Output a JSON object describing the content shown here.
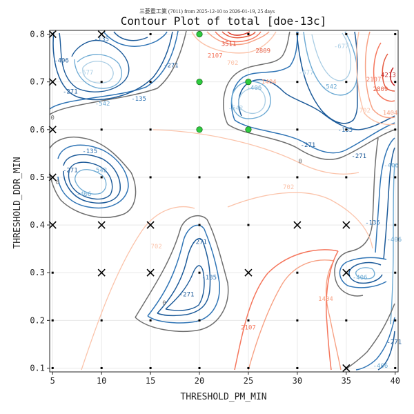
{
  "chart_data": {
    "type": "contour",
    "subtitle": "三菱重工業 (7011) from 2025-12-10 to 2026-01-19, 25 days",
    "title": "Contour Plot of total [doe-13c]",
    "xlabel": "THRESHOLD_PM_MIN",
    "ylabel": "THRESHOLD_DDR_MIN",
    "xlim": [
      4.7,
      40.3
    ],
    "ylim": [
      0.092,
      0.808
    ],
    "xticks": [
      5,
      10,
      15,
      20,
      25,
      30,
      35,
      40
    ],
    "xtick_labels": [
      "5",
      "10",
      "15",
      "20",
      "25",
      "30",
      "35",
      "40"
    ],
    "yticks": [
      0.1,
      0.2,
      0.3,
      0.4,
      0.5,
      0.6,
      0.7,
      0.8
    ],
    "ytick_labels": [
      "0.1",
      "0.2",
      "0.3",
      "0.4",
      "0.5",
      "0.6",
      "0.7",
      "0.8"
    ],
    "grid": true,
    "contour_levels": [
      -677,
      -542,
      -406,
      -271,
      -135,
      0,
      702,
      1404,
      2107,
      2809,
      3511,
      4213
    ],
    "contour_labels": [
      {
        "text": "-135",
        "x": 10.0,
        "y": 0.79,
        "color": "#2f74b5"
      },
      {
        "text": "-406",
        "x": 5.9,
        "y": 0.745,
        "color": "#1c5a99"
      },
      {
        "text": "-677",
        "x": 8.4,
        "y": 0.72,
        "color": "#a9cde4"
      },
      {
        "text": "-271",
        "x": 6.8,
        "y": 0.68,
        "color": "#1c5a99"
      },
      {
        "text": "-542",
        "x": 10.1,
        "y": 0.655,
        "color": "#6ba9d3"
      },
      {
        "text": "-135",
        "x": 13.8,
        "y": 0.665,
        "color": "#2f74b5"
      },
      {
        "text": "-271",
        "x": 17.1,
        "y": 0.735,
        "color": "#1c5a99"
      },
      {
        "text": "0",
        "x": 5.0,
        "y": 0.625,
        "color": "#6e6e6e"
      },
      {
        "text": "-135",
        "x": 8.8,
        "y": 0.555,
        "color": "#2f74b5"
      },
      {
        "text": "-271",
        "x": 6.8,
        "y": 0.515,
        "color": "#1c5a99"
      },
      {
        "text": "-542",
        "x": 9.8,
        "y": 0.515,
        "color": "#6ba9d3"
      },
      {
        "text": "-406",
        "x": 8.2,
        "y": 0.465,
        "color": "#6ba9d3"
      },
      {
        "text": "0",
        "x": 5.5,
        "y": 0.49,
        "color": "#6e6e6e"
      },
      {
        "text": "3511",
        "x": 23.0,
        "y": 0.78,
        "color": "#e03b2b"
      },
      {
        "text": "2107",
        "x": 21.6,
        "y": 0.755,
        "color": "#f5765c"
      },
      {
        "text": "2809",
        "x": 26.5,
        "y": 0.765,
        "color": "#e55a3f"
      },
      {
        "text": "1404",
        "x": 27.1,
        "y": 0.7,
        "color": "#f7a184"
      },
      {
        "text": "702",
        "x": 23.4,
        "y": 0.74,
        "color": "#fbc3aa"
      },
      {
        "text": "-406",
        "x": 25.6,
        "y": 0.688,
        "color": "#6ba9d3"
      },
      {
        "text": "-542",
        "x": 23.7,
        "y": 0.645,
        "color": "#a9cde4"
      },
      {
        "text": "-677",
        "x": 30.9,
        "y": 0.72,
        "color": "#a9cde4"
      },
      {
        "text": "-542",
        "x": 33.3,
        "y": 0.69,
        "color": "#6ba9d3"
      },
      {
        "text": "-677",
        "x": 34.5,
        "y": 0.775,
        "color": "#a9cde4"
      },
      {
        "text": "-135",
        "x": 34.9,
        "y": 0.6,
        "color": "#2f74b5"
      },
      {
        "text": "-271",
        "x": 31.1,
        "y": 0.568,
        "color": "#1c5a99"
      },
      {
        "text": "-271",
        "x": 36.3,
        "y": 0.545,
        "color": "#1c5a99"
      },
      {
        "text": "0",
        "x": 30.3,
        "y": 0.534,
        "color": "#6e6e6e"
      },
      {
        "text": "-406",
        "x": 39.6,
        "y": 0.525,
        "color": "#6ba9d3"
      },
      {
        "text": "702",
        "x": 36.9,
        "y": 0.64,
        "color": "#fbc3aa"
      },
      {
        "text": "1404",
        "x": 39.5,
        "y": 0.635,
        "color": "#f7a184"
      },
      {
        "text": "2107",
        "x": 37.8,
        "y": 0.705,
        "color": "#f5765c"
      },
      {
        "text": "2809",
        "x": 38.5,
        "y": 0.685,
        "color": "#e55a3f"
      },
      {
        "text": "4213",
        "x": 39.3,
        "y": 0.715,
        "color": "#c41f1f"
      },
      {
        "text": "702",
        "x": 29.1,
        "y": 0.48,
        "color": "#fbc3aa"
      },
      {
        "text": "-135",
        "x": 37.7,
        "y": 0.405,
        "color": "#2f74b5"
      },
      {
        "text": "-406",
        "x": 39.9,
        "y": 0.37,
        "color": "#6ba9d3"
      },
      {
        "text": "-406",
        "x": 36.4,
        "y": 0.29,
        "color": "#6ba9d3"
      },
      {
        "text": "1404",
        "x": 32.9,
        "y": 0.245,
        "color": "#f7a184"
      },
      {
        "text": "-271",
        "x": 39.9,
        "y": 0.155,
        "color": "#1c5a99"
      },
      {
        "text": "-406",
        "x": 38.5,
        "y": 0.105,
        "color": "#6ba9d3"
      },
      {
        "text": "702",
        "x": 15.6,
        "y": 0.355,
        "color": "#fbc3aa"
      },
      {
        "text": "-271",
        "x": 20.0,
        "y": 0.365,
        "color": "#1c5a99"
      },
      {
        "text": "-135",
        "x": 21.0,
        "y": 0.29,
        "color": "#2f74b5"
      },
      {
        "text": "-271",
        "x": 18.7,
        "y": 0.255,
        "color": "#1c5a99"
      },
      {
        "text": "0",
        "x": 16.4,
        "y": 0.237,
        "color": "#6e6e6e"
      },
      {
        "text": "2107",
        "x": 25.0,
        "y": 0.185,
        "color": "#f5765c"
      }
    ],
    "points": [
      {
        "x": 5,
        "y": 0.8,
        "marker": "x"
      },
      {
        "x": 10,
        "y": 0.8,
        "marker": "x"
      },
      {
        "x": 15,
        "y": 0.8,
        "marker": "dot"
      },
      {
        "x": 20,
        "y": 0.8,
        "marker": "circle"
      },
      {
        "x": 25,
        "y": 0.8,
        "marker": "dot"
      },
      {
        "x": 30,
        "y": 0.8,
        "marker": "dot"
      },
      {
        "x": 35,
        "y": 0.8,
        "marker": "dot"
      },
      {
        "x": 40,
        "y": 0.8,
        "marker": "dot"
      },
      {
        "x": 5,
        "y": 0.7,
        "marker": "x"
      },
      {
        "x": 10,
        "y": 0.7,
        "marker": "dot"
      },
      {
        "x": 15,
        "y": 0.7,
        "marker": "dot"
      },
      {
        "x": 20,
        "y": 0.7,
        "marker": "circle"
      },
      {
        "x": 25,
        "y": 0.7,
        "marker": "circle"
      },
      {
        "x": 30,
        "y": 0.7,
        "marker": "dot"
      },
      {
        "x": 35,
        "y": 0.7,
        "marker": "dot"
      },
      {
        "x": 40,
        "y": 0.7,
        "marker": "dot"
      },
      {
        "x": 5,
        "y": 0.6,
        "marker": "x"
      },
      {
        "x": 10,
        "y": 0.6,
        "marker": "dot"
      },
      {
        "x": 15,
        "y": 0.6,
        "marker": "dot"
      },
      {
        "x": 20,
        "y": 0.6,
        "marker": "circle"
      },
      {
        "x": 25,
        "y": 0.6,
        "marker": "circle"
      },
      {
        "x": 30,
        "y": 0.6,
        "marker": "dot"
      },
      {
        "x": 35,
        "y": 0.6,
        "marker": "dot"
      },
      {
        "x": 40,
        "y": 0.6,
        "marker": "dot"
      },
      {
        "x": 5,
        "y": 0.5,
        "marker": "x"
      },
      {
        "x": 10,
        "y": 0.5,
        "marker": "dot"
      },
      {
        "x": 15,
        "y": 0.5,
        "marker": "dot"
      },
      {
        "x": 20,
        "y": 0.5,
        "marker": "dot"
      },
      {
        "x": 25,
        "y": 0.5,
        "marker": "dot"
      },
      {
        "x": 30,
        "y": 0.5,
        "marker": "dot"
      },
      {
        "x": 35,
        "y": 0.5,
        "marker": "dot"
      },
      {
        "x": 40,
        "y": 0.5,
        "marker": "dot"
      },
      {
        "x": 5,
        "y": 0.4,
        "marker": "x"
      },
      {
        "x": 10,
        "y": 0.4,
        "marker": "x"
      },
      {
        "x": 15,
        "y": 0.4,
        "marker": "x"
      },
      {
        "x": 20,
        "y": 0.4,
        "marker": "dot"
      },
      {
        "x": 25,
        "y": 0.4,
        "marker": "dot"
      },
      {
        "x": 30,
        "y": 0.4,
        "marker": "x"
      },
      {
        "x": 35,
        "y": 0.4,
        "marker": "x"
      },
      {
        "x": 40,
        "y": 0.4,
        "marker": "dot"
      },
      {
        "x": 5,
        "y": 0.3,
        "marker": "dot"
      },
      {
        "x": 10,
        "y": 0.3,
        "marker": "x"
      },
      {
        "x": 15,
        "y": 0.3,
        "marker": "x"
      },
      {
        "x": 20,
        "y": 0.3,
        "marker": "dot"
      },
      {
        "x": 25,
        "y": 0.3,
        "marker": "x"
      },
      {
        "x": 30,
        "y": 0.3,
        "marker": "dot"
      },
      {
        "x": 35,
        "y": 0.3,
        "marker": "x"
      },
      {
        "x": 40,
        "y": 0.3,
        "marker": "dot"
      },
      {
        "x": 5,
        "y": 0.2,
        "marker": "dot"
      },
      {
        "x": 10,
        "y": 0.2,
        "marker": "dot"
      },
      {
        "x": 15,
        "y": 0.2,
        "marker": "dot"
      },
      {
        "x": 20,
        "y": 0.2,
        "marker": "dot"
      },
      {
        "x": 25,
        "y": 0.2,
        "marker": "dot"
      },
      {
        "x": 30,
        "y": 0.2,
        "marker": "dot"
      },
      {
        "x": 35,
        "y": 0.2,
        "marker": "dot"
      },
      {
        "x": 40,
        "y": 0.2,
        "marker": "dot"
      },
      {
        "x": 5,
        "y": 0.1,
        "marker": "dot"
      },
      {
        "x": 10,
        "y": 0.1,
        "marker": "dot"
      },
      {
        "x": 15,
        "y": 0.1,
        "marker": "dot"
      },
      {
        "x": 20,
        "y": 0.1,
        "marker": "dot"
      },
      {
        "x": 25,
        "y": 0.1,
        "marker": "dot"
      },
      {
        "x": 30,
        "y": 0.1,
        "marker": "dot"
      },
      {
        "x": 35,
        "y": 0.1,
        "marker": "x"
      },
      {
        "x": 40,
        "y": 0.1,
        "marker": "dot"
      }
    ],
    "colors": {
      "neg_dark": "#1c5a99",
      "neg_mid": "#2f74b5",
      "neg_light": "#6ba9d3",
      "neg_pale": "#a9cde4",
      "zero": "#6e6e6e",
      "pos_pale": "#fbc3aa",
      "pos_light": "#f7a184",
      "pos_mid": "#f5765c",
      "pos_dark": "#e03b2b",
      "pos_deep": "#c41f1f",
      "highlight_fill": "#2ecc40"
    }
  }
}
